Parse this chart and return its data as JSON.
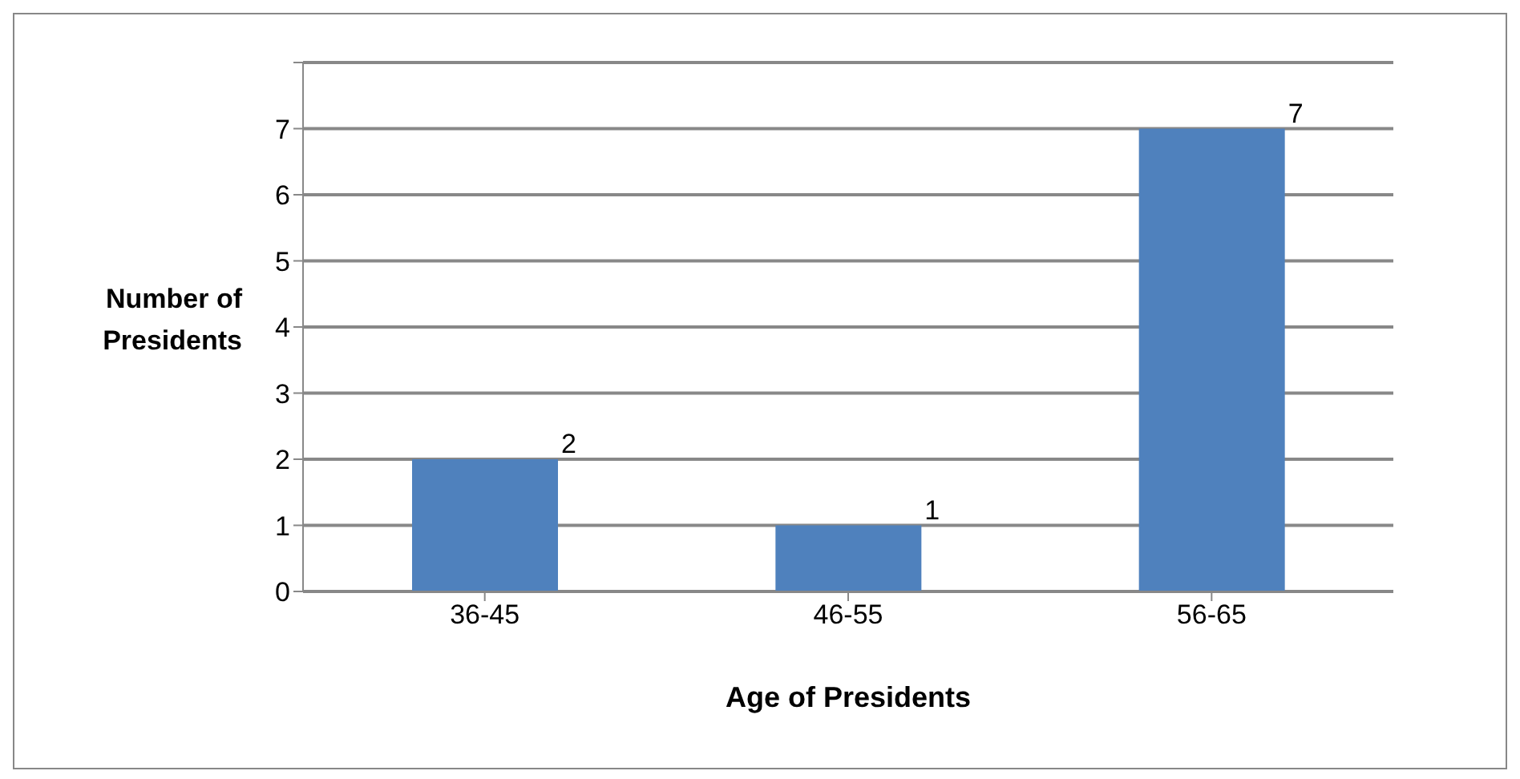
{
  "chart_data": {
    "type": "bar",
    "xlabel": "Age of Presidents",
    "ylabel": "Number of Presidents",
    "categories": [
      "36-45",
      "46-55",
      "56-65"
    ],
    "values": [
      2,
      1,
      7
    ],
    "color": "#4f81bd",
    "ylim": [
      0,
      8
    ],
    "yticks": [
      0,
      1,
      2,
      3,
      4,
      5,
      6,
      7,
      {
        "value": 8,
        "label": null
      }
    ],
    "grid": "y",
    "data_labels": true
  }
}
